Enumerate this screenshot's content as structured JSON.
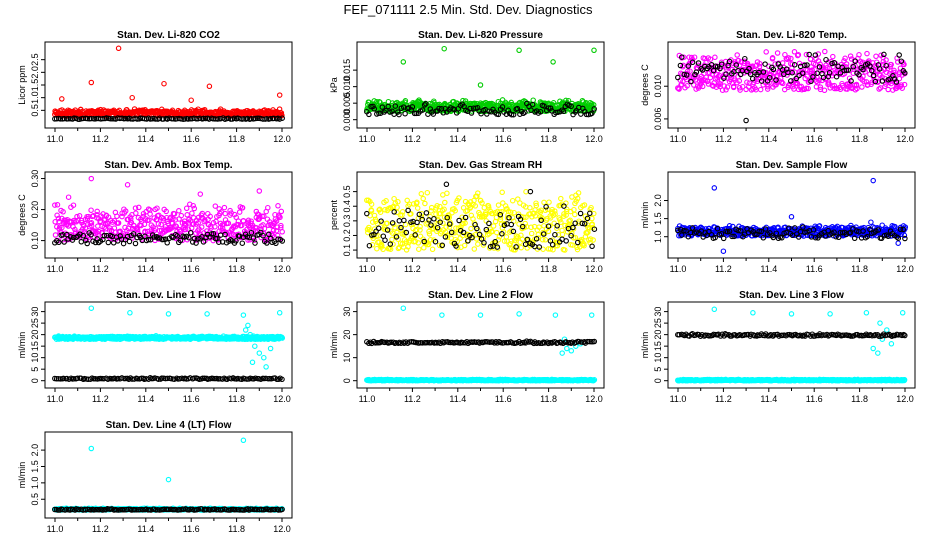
{
  "title": "FEF_071111  2.5 Min. Std. Dev. Diagnostics",
  "colors": {
    "red": "#ff0000",
    "green": "#00cc00",
    "magenta": "#ff00ff",
    "yellow": "#ffff00",
    "blue": "#0000ff",
    "cyan": "#00ffff",
    "black": "#000000"
  },
  "chart_data": [
    {
      "type": "scatter",
      "title": "Stan. Dev. Li-820 CO2",
      "xlabel": "",
      "ylabel": "Licor ppm",
      "xlim": [
        11.0,
        12.0
      ],
      "ylim": [
        0.0,
        3.0
      ],
      "xticks": [
        "11.0",
        "11.2",
        "11.4",
        "11.6",
        "11.8",
        "12.0"
      ],
      "yticks": [
        "0.5",
        "1.0",
        "1.5",
        "2.0",
        "2.5"
      ],
      "series": [
        {
          "color": "red",
          "gen": {
            "n": 480,
            "base": 0.28,
            "spread": 0.28,
            "seed": 11
          },
          "extra": [
            [
              11.28,
              2.95
            ],
            [
              11.16,
              1.6
            ],
            [
              11.48,
              1.55
            ],
            [
              11.68,
              1.45
            ],
            [
              11.03,
              0.95
            ],
            [
              11.99,
              1.1
            ],
            [
              11.34,
              1.0
            ],
            [
              11.6,
              0.9
            ]
          ]
        },
        {
          "color": "black",
          "gen": {
            "n": 120,
            "base": 0.15,
            "spread": 0.05,
            "seed": 12
          },
          "extra": []
        }
      ]
    },
    {
      "type": "scatter",
      "title": "Stan. Dev. Li-820 Pressure",
      "xlabel": "",
      "ylabel": "kPa",
      "xlim": [
        11.0,
        12.0
      ],
      "ylim": [
        -0.001,
        0.022
      ],
      "xticks": [
        "11.0",
        "11.2",
        "11.4",
        "11.6",
        "11.8",
        "12.0"
      ],
      "yticks": [
        "0.000",
        "0.005",
        "0.010",
        "0.015"
      ],
      "series": [
        {
          "color": "green",
          "gen": {
            "n": 520,
            "base": 0.0025,
            "spread": 0.0035,
            "seed": 21
          },
          "extra": [
            [
              11.34,
              0.0215
            ],
            [
              11.67,
              0.021
            ],
            [
              12.0,
              0.021
            ],
            [
              11.16,
              0.0175
            ],
            [
              11.82,
              0.0175
            ],
            [
              11.5,
              0.0105
            ]
          ]
        },
        {
          "color": "black",
          "gen": {
            "n": 120,
            "base": 0.0015,
            "spread": 0.0035,
            "seed": 22
          },
          "extra": []
        }
      ]
    },
    {
      "type": "scatter",
      "title": "Stan. Dev. Li-820 Temp.",
      "xlabel": "",
      "ylabel": "degrees C",
      "xlim": [
        11.0,
        12.0
      ],
      "ylim": [
        0.0055,
        0.0148
      ],
      "xticks": [
        "11.0",
        "11.2",
        "11.4",
        "11.6",
        "11.8",
        "12.0"
      ],
      "yticks": [
        "0.006",
        "0.010"
      ],
      "series": [
        {
          "color": "magenta",
          "gen": {
            "n": 480,
            "base": 0.0095,
            "spread": 0.005,
            "seed": 31
          },
          "extra": []
        },
        {
          "color": "black",
          "gen": {
            "n": 110,
            "base": 0.0105,
            "spread": 0.0035,
            "seed": 32
          },
          "extra": [
            [
              11.3,
              0.0058
            ]
          ]
        }
      ]
    },
    {
      "type": "scatter",
      "title": "Stan. Dev. Amb. Box Temp.",
      "xlabel": "",
      "ylabel": "degrees C",
      "xlim": [
        11.0,
        12.0
      ],
      "ylim": [
        0.06,
        0.305
      ],
      "xticks": [
        "11.0",
        "11.2",
        "11.4",
        "11.6",
        "11.8",
        "12.0"
      ],
      "yticks": [
        "0.10",
        "0.20",
        "0.30"
      ],
      "series": [
        {
          "color": "magenta",
          "gen": {
            "n": 470,
            "base": 0.1,
            "spread": 0.12,
            "seed": 41
          },
          "extra": [
            [
              11.16,
              0.3
            ],
            [
              11.32,
              0.28
            ],
            [
              11.64,
              0.25
            ],
            [
              11.9,
              0.26
            ],
            [
              11.06,
              0.24
            ]
          ]
        },
        {
          "color": "black",
          "gen": {
            "n": 120,
            "base": 0.09,
            "spread": 0.04,
            "seed": 42
          },
          "extra": []
        }
      ]
    },
    {
      "type": "scatter",
      "title": "Stan. Dev. Gas Stream RH",
      "xlabel": "",
      "ylabel": "percent",
      "xlim": [
        11.0,
        12.0
      ],
      "ylim": [
        0.08,
        0.6
      ],
      "xticks": [
        "11.0",
        "11.2",
        "11.4",
        "11.6",
        "11.8",
        "12.0"
      ],
      "yticks": [
        "0.1",
        "0.2",
        "0.3",
        "0.4",
        "0.5"
      ],
      "series": [
        {
          "color": "yellow",
          "gen": {
            "n": 480,
            "base": 0.1,
            "spread": 0.42,
            "seed": 51
          },
          "extra": []
        },
        {
          "color": "black",
          "gen": {
            "n": 100,
            "base": 0.12,
            "spread": 0.3,
            "seed": 52
          },
          "extra": [
            [
              11.35,
              0.55
            ],
            [
              11.72,
              0.5
            ]
          ]
        }
      ]
    },
    {
      "type": "scatter",
      "title": "Stan. Dev. Sample Flow",
      "xlabel": "",
      "ylabel": "ml/min",
      "xlim": [
        11.0,
        12.0
      ],
      "ylim": [
        0.55,
        2.65
      ],
      "xticks": [
        "11.0",
        "11.2",
        "11.4",
        "11.6",
        "11.8",
        "12.0"
      ],
      "yticks": [
        "1.0",
        "1.5",
        "2.0"
      ],
      "series": [
        {
          "color": "blue",
          "gen": {
            "n": 480,
            "base": 1.02,
            "spread": 0.3,
            "seed": 61
          },
          "extra": [
            [
              11.16,
              2.35
            ],
            [
              11.86,
              2.55
            ],
            [
              11.5,
              1.55
            ],
            [
              11.85,
              1.4
            ],
            [
              11.2,
              0.6
            ],
            [
              11.97,
              0.82
            ]
          ]
        },
        {
          "color": "black",
          "gen": {
            "n": 110,
            "base": 0.95,
            "spread": 0.35,
            "seed": 62
          },
          "extra": []
        }
      ]
    },
    {
      "type": "scatter",
      "title": "Stan. Dev. Line 1 Flow",
      "xlabel": "",
      "ylabel": "ml/min",
      "xlim": [
        11.0,
        12.0
      ],
      "ylim": [
        -1,
        32
      ],
      "xticks": [
        "11.0",
        "11.2",
        "11.4",
        "11.6",
        "11.8",
        "12.0"
      ],
      "yticks": [
        "0",
        "5",
        "10",
        "15",
        "20",
        "25",
        "30"
      ],
      "series": [
        {
          "color": "cyan",
          "gen": {
            "n": 520,
            "base": 18,
            "spread": 1.5,
            "seed": 71
          },
          "extra": [
            [
              11.16,
              31.5
            ],
            [
              11.33,
              29.5
            ],
            [
              11.5,
              29
            ],
            [
              11.67,
              29
            ],
            [
              11.83,
              28.5
            ],
            [
              11.99,
              29.5
            ],
            [
              11.84,
              22
            ],
            [
              11.86,
              20
            ],
            [
              11.88,
              15
            ],
            [
              11.9,
              12
            ],
            [
              11.92,
              10
            ],
            [
              11.85,
              24
            ],
            [
              11.95,
              14
            ],
            [
              11.87,
              8
            ],
            [
              11.93,
              6
            ]
          ]
        },
        {
          "color": "black",
          "gen": {
            "n": 130,
            "base": 0.6,
            "spread": 0.7,
            "seed": 72
          },
          "extra": []
        }
      ]
    },
    {
      "type": "scatter",
      "title": "Stan. Dev. Line 2 Flow",
      "xlabel": "",
      "ylabel": "ml/min",
      "xlim": [
        11.0,
        12.0
      ],
      "ylim": [
        -1,
        32
      ],
      "xticks": [
        "11.0",
        "11.2",
        "11.4",
        "11.6",
        "11.8",
        "12.0"
      ],
      "yticks": [
        "0",
        "10",
        "20",
        "30"
      ],
      "series": [
        {
          "color": "cyan",
          "gen": {
            "n": 520,
            "base": 0,
            "spread": 0.6,
            "seed": 81
          },
          "extra": [
            [
              11.16,
              31.5
            ],
            [
              11.33,
              28.5
            ],
            [
              11.5,
              28.5
            ],
            [
              11.67,
              29
            ],
            [
              11.83,
              28.5
            ],
            [
              11.99,
              28.5
            ],
            [
              11.86,
              12
            ],
            [
              11.88,
              14
            ],
            [
              11.9,
              13
            ],
            [
              11.92,
              15
            ],
            [
              11.87,
              18
            ],
            [
              11.94,
              16
            ]
          ]
        },
        {
          "color": "black",
          "gen": {
            "n": 140,
            "base": 16.2,
            "spread": 1.0,
            "seed": 82
          },
          "extra": []
        }
      ]
    },
    {
      "type": "scatter",
      "title": "Stan. Dev. Line 3 Flow",
      "xlabel": "",
      "ylabel": "ml/min",
      "xlim": [
        11.0,
        12.0
      ],
      "ylim": [
        -1,
        32
      ],
      "xticks": [
        "11.0",
        "11.2",
        "11.4",
        "11.6",
        "11.8",
        "12.0"
      ],
      "yticks": [
        "0",
        "5",
        "10",
        "15",
        "20",
        "25",
        "30"
      ],
      "series": [
        {
          "color": "cyan",
          "gen": {
            "n": 520,
            "base": 0,
            "spread": 0.6,
            "seed": 91
          },
          "extra": [
            [
              11.16,
              31
            ],
            [
              11.33,
              29.5
            ],
            [
              11.5,
              29
            ],
            [
              11.67,
              29
            ],
            [
              11.83,
              29.5
            ],
            [
              11.99,
              29.5
            ],
            [
              11.86,
              14
            ],
            [
              11.88,
              12
            ],
            [
              11.9,
              18
            ],
            [
              11.92,
              22
            ],
            [
              11.89,
              25
            ],
            [
              11.94,
              16
            ]
          ]
        },
        {
          "color": "black",
          "gen": {
            "n": 140,
            "base": 19.3,
            "spread": 1.2,
            "seed": 92
          },
          "extra": []
        }
      ]
    },
    {
      "type": "scatter",
      "title": "Stan. Dev. Line 4 (LT) Flow",
      "xlabel": "",
      "ylabel": "ml/min",
      "xlim": [
        11.0,
        12.0
      ],
      "ylim": [
        0.08,
        2.4
      ],
      "xticks": [
        "11.0",
        "11.2",
        "11.4",
        "11.6",
        "11.8",
        "12.0"
      ],
      "yticks": [
        "0.5",
        "1.0",
        "1.5",
        "2.0"
      ],
      "series": [
        {
          "color": "cyan",
          "gen": {
            "n": 480,
            "base": 0.17,
            "spread": 0.06,
            "seed": 101
          },
          "extra": [
            [
              11.16,
              2.05
            ],
            [
              11.83,
              2.3
            ],
            [
              11.5,
              1.1
            ]
          ]
        },
        {
          "color": "black",
          "gen": {
            "n": 140,
            "base": 0.17,
            "spread": 0.04,
            "seed": 102
          },
          "extra": []
        }
      ]
    }
  ]
}
